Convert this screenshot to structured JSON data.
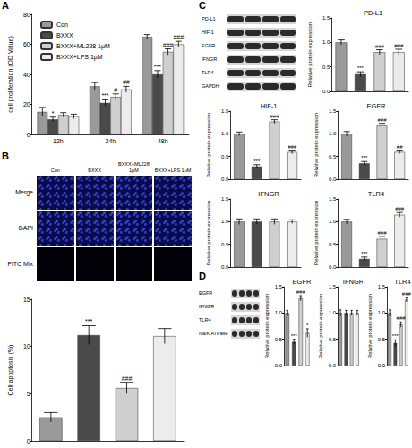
{
  "chart_data": [
    {
      "type": "bar",
      "categories": [
        "12h",
        "24h",
        "48h"
      ],
      "ylabel": "cell proliferation (OD Value)",
      "ylim": [
        0,
        80
      ],
      "yticks": [
        0,
        20,
        40,
        60,
        80
      ],
      "grid": false,
      "legend": "upper left",
      "series": [
        {
          "name": "Con",
          "color": "#9a9a9a",
          "values": [
            15,
            32,
            65
          ],
          "errors": [
            3,
            2.5,
            1.5
          ]
        },
        {
          "name": "BXXX",
          "color": "#4a4a4a",
          "values": [
            10,
            21,
            40
          ],
          "errors": [
            1.5,
            2,
            2.5
          ],
          "annotations": [
            "*",
            "***",
            "***"
          ]
        },
        {
          "name": "BXXX+ML228 1μM",
          "color": "#cfcfcf",
          "values": [
            13,
            25,
            55
          ],
          "errors": [
            1.5,
            2,
            2
          ],
          "annotations": [
            null,
            "#",
            "###"
          ]
        },
        {
          "name": "BXXX+LPS 1μM",
          "color": "#ececec",
          "values": [
            12,
            30,
            60
          ],
          "errors": [
            1.5,
            2,
            2
          ],
          "annotations": [
            null,
            "##",
            "###"
          ]
        }
      ]
    },
    {
      "type": "bar",
      "categories": [
        null,
        null,
        null,
        null
      ],
      "ylabel": "Cell apoptosis (%)",
      "ylim": [
        0,
        15
      ],
      "yticks": [
        0,
        5,
        10,
        15
      ],
      "grid": false,
      "tick_labels": "y",
      "values": [
        2.5,
        11.2,
        5.6,
        11.1
      ],
      "errors": [
        0.5,
        1,
        0.6,
        0.8
      ],
      "annotations": [
        null,
        "***",
        "###",
        null
      ],
      "colors": [
        "#9a9a9a",
        "#4a4a4a",
        "#cfcfcf",
        "#ececec"
      ]
    },
    {
      "type": "bar",
      "title": "PD-L1",
      "categories": [
        null,
        null,
        null,
        null
      ],
      "ylabel": "Relative protein expression",
      "ylim": [
        0,
        1.5
      ],
      "yticks": [
        {
          "value": 0,
          "label": "0.0"
        },
        0.5,
        {
          "value": 1,
          "label": "1.0"
        },
        1.5
      ],
      "grid": false,
      "tick_labels": "y",
      "values": [
        1.0,
        0.35,
        0.8,
        0.8
      ],
      "errors": [
        0.05,
        0.05,
        0.05,
        0.06
      ],
      "annotations": [
        null,
        "***",
        "###",
        "###"
      ],
      "colors": [
        "#9a9a9a",
        "#4a4a4a",
        "#cfcfcf",
        "#ececec"
      ]
    },
    {
      "type": "bar",
      "title": "HIF-1",
      "categories": [
        null,
        null,
        null,
        null
      ],
      "ylabel": "Relative protein expression",
      "ylim": [
        0,
        1.5
      ],
      "yticks": [
        {
          "value": 0,
          "label": "0.0"
        },
        0.5,
        {
          "value": 1,
          "label": "1.0"
        },
        1.5
      ],
      "grid": false,
      "tick_labels": "y",
      "values": [
        1.0,
        0.28,
        1.27,
        0.6
      ],
      "errors": [
        0.04,
        0.04,
        0.04,
        0.04
      ],
      "annotations": [
        null,
        "***",
        "###",
        "###"
      ],
      "colors": [
        "#9a9a9a",
        "#4a4a4a",
        "#cfcfcf",
        "#ececec"
      ]
    },
    {
      "type": "bar",
      "title": "EGFR",
      "categories": [
        null,
        null,
        null,
        null
      ],
      "ylabel": "Relative protein expression",
      "ylim": [
        0,
        1.5
      ],
      "yticks": [
        {
          "value": 0,
          "label": "0.0"
        },
        0.5,
        {
          "value": 1,
          "label": "1.0"
        },
        1.5
      ],
      "grid": false,
      "tick_labels": "y",
      "values": [
        1.0,
        0.35,
        1.18,
        0.6
      ],
      "errors": [
        0.05,
        0.04,
        0.05,
        0.04
      ],
      "annotations": [
        null,
        "***",
        "###",
        "##"
      ],
      "colors": [
        "#9a9a9a",
        "#4a4a4a",
        "#cfcfcf",
        "#ececec"
      ]
    },
    {
      "type": "bar",
      "title": "IFNGR",
      "categories": [
        null,
        null,
        null,
        null
      ],
      "ylabel": "Relative protein expression",
      "ylim": [
        0,
        1.5
      ],
      "yticks": [
        {
          "value": 0,
          "label": "0.0"
        },
        0.5,
        {
          "value": 1,
          "label": "1.0"
        },
        1.5
      ],
      "grid": false,
      "tick_labels": "y",
      "values": [
        1.0,
        1.0,
        1.0,
        1.0
      ],
      "errors": [
        0.06,
        0.06,
        0.06,
        0.04
      ],
      "colors": [
        "#9a9a9a",
        "#4a4a4a",
        "#cfcfcf",
        "#ececec"
      ]
    },
    {
      "type": "bar",
      "title": "TLR4",
      "categories": [
        null,
        null,
        null,
        null
      ],
      "ylabel": "Relative protein expression",
      "ylim": [
        0,
        1.5
      ],
      "yticks": [
        {
          "value": 0,
          "label": "0.0"
        },
        0.5,
        {
          "value": 1,
          "label": "1.0"
        },
        1.5
      ],
      "grid": false,
      "tick_labels": "y",
      "values": [
        1.0,
        0.18,
        0.62,
        1.15
      ],
      "errors": [
        0.05,
        0.04,
        0.05,
        0.05
      ],
      "annotations": [
        null,
        "***",
        "###",
        "###"
      ],
      "colors": [
        "#9a9a9a",
        "#4a4a4a",
        "#cfcfcf",
        "#ececec"
      ]
    },
    {
      "type": "bar",
      "title": "EGFR",
      "categories": [
        null,
        null,
        null,
        null
      ],
      "ylabel": "Relative protein expression",
      "ylim": [
        0,
        1.5
      ],
      "yticks": [
        {
          "value": 0,
          "label": "0.0"
        },
        0.5,
        {
          "value": 1,
          "label": "1.0"
        },
        1.5
      ],
      "grid": false,
      "tick_labels": "y",
      "values": [
        1.0,
        0.45,
        1.28,
        0.62
      ],
      "errors": [
        0.05,
        0.05,
        0.05,
        0.08
      ],
      "annotations": [
        null,
        "***",
        "###",
        "*"
      ],
      "colors": [
        "#9a9a9a",
        "#4a4a4a",
        "#cfcfcf",
        "#ececec"
      ]
    },
    {
      "type": "bar",
      "title": "IFNGR",
      "categories": [
        null,
        null,
        null,
        null
      ],
      "ylabel": "Relative protein expression",
      "ylim": [
        0,
        1.5
      ],
      "yticks": [
        {
          "value": 0,
          "label": "0.0"
        },
        0.5,
        {
          "value": 1,
          "label": "1.0"
        },
        1.5
      ],
      "grid": false,
      "tick_labels": "y",
      "values": [
        1.0,
        1.0,
        1.0,
        1.0
      ],
      "errors": [
        0.06,
        0.05,
        0.05,
        0.05
      ],
      "colors": [
        "#9a9a9a",
        "#4a4a4a",
        "#cfcfcf",
        "#ececec"
      ]
    },
    {
      "type": "bar",
      "title": "TLR4",
      "categories": [
        null,
        null,
        null,
        null
      ],
      "ylabel": "Relative protein expression",
      "ylim": [
        0,
        1.5
      ],
      "yticks": [
        {
          "value": 0,
          "label": "0.0"
        },
        0.5,
        {
          "value": 1,
          "label": "1.0"
        },
        1.5
      ],
      "grid": false,
      "tick_labels": "y",
      "values": [
        1.0,
        0.43,
        0.78,
        1.25
      ],
      "errors": [
        0.06,
        0.06,
        0.05,
        0.04
      ],
      "annotations": [
        null,
        "***",
        "###",
        "###"
      ],
      "colors": [
        "#9a9a9a",
        "#4a4a4a",
        "#cfcfcf",
        "#ececec"
      ]
    }
  ],
  "figure": {
    "panels": [
      "A",
      "B",
      "C",
      "D"
    ],
    "microscopy": {
      "columns": [
        "Con",
        "BXXX",
        "BXXX+ML228 1μM",
        "BXXX+LPS 1μM"
      ],
      "rows": [
        "Merge",
        "DAPI",
        "FITC Mix"
      ]
    },
    "blots": [
      {
        "panel": "C",
        "labels": [
          "PD-L1",
          "HIF-1",
          "EGFR",
          "IFNGR",
          "TLR4",
          "GAPDH"
        ]
      },
      {
        "panel": "D",
        "labels": [
          "EGFR",
          "IFNGR",
          "TLR4",
          "Na/K ATPase"
        ]
      }
    ]
  }
}
